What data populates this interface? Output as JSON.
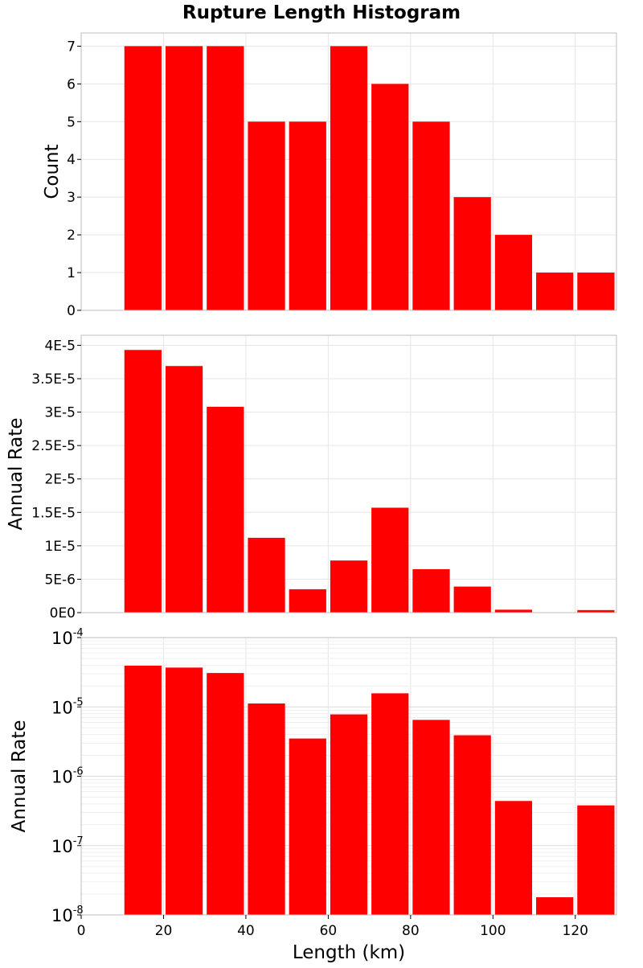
{
  "chart_data": [
    {
      "type": "bar",
      "panel": "count",
      "title": "Rupture Length Histogram",
      "ylabel": "Count",
      "xlabel": "",
      "bin_width": 10,
      "x": [
        15,
        25,
        35,
        45,
        55,
        65,
        75,
        85,
        95,
        105,
        115,
        125
      ],
      "values": [
        7,
        7,
        7,
        5,
        5,
        7,
        6,
        5,
        3,
        2,
        1,
        1
      ],
      "xlim": [
        0,
        130
      ],
      "ylim": [
        0,
        7.35
      ],
      "yticks": [
        0,
        1,
        2,
        3,
        4,
        5,
        6,
        7
      ],
      "ytick_labels": [
        "0",
        "1",
        "2",
        "3",
        "4",
        "5",
        "6",
        "7"
      ],
      "color": "#ff0000",
      "grid": true
    },
    {
      "type": "bar",
      "panel": "rate_linear",
      "ylabel": "Annual Rate",
      "xlabel": "",
      "bin_width": 10,
      "x": [
        15,
        25,
        35,
        45,
        55,
        65,
        75,
        85,
        95,
        105,
        115,
        125
      ],
      "values": [
        3.93e-05,
        3.69e-05,
        3.08e-05,
        1.12e-05,
        3.5e-06,
        7.8e-06,
        1.57e-05,
        6.5e-06,
        3.9e-06,
        4.4e-07,
        1.8e-08,
        3.8e-07
      ],
      "xlim": [
        0,
        130
      ],
      "ylim": [
        0,
        4.15e-05
      ],
      "yticks": [
        0,
        5e-06,
        1e-05,
        1.5e-05,
        2e-05,
        2.5e-05,
        3e-05,
        3.5e-05,
        4e-05
      ],
      "ytick_labels": [
        "0E0",
        "5E-6",
        "1E-5",
        "1.5E-5",
        "2E-5",
        "2.5E-5",
        "3E-5",
        "3.5E-5",
        "4E-5"
      ],
      "color": "#ff0000",
      "grid": true
    },
    {
      "type": "bar",
      "panel": "rate_log",
      "ylabel": "Annual Rate",
      "xlabel": "Length (km)",
      "bin_width": 10,
      "x": [
        15,
        25,
        35,
        45,
        55,
        65,
        75,
        85,
        95,
        105,
        115,
        125
      ],
      "values": [
        3.93e-05,
        3.69e-05,
        3.08e-05,
        1.12e-05,
        3.5e-06,
        7.8e-06,
        1.57e-05,
        6.5e-06,
        3.9e-06,
        4.4e-07,
        1.8e-08,
        3.8e-07
      ],
      "xlim": [
        0,
        130
      ],
      "ylim": [
        1e-08,
        0.0001
      ],
      "yscale": "log",
      "yticks": [
        1e-08,
        1e-07,
        1e-06,
        1e-05,
        0.0001
      ],
      "ytick_base": "10",
      "ytick_exponents": [
        "-8",
        "-7",
        "-6",
        "-5",
        "-4"
      ],
      "xticks": [
        0,
        20,
        40,
        60,
        80,
        100,
        120
      ],
      "xtick_labels": [
        "0",
        "20",
        "40",
        "60",
        "80",
        "100",
        "120"
      ],
      "color": "#ff0000",
      "grid": true
    }
  ]
}
